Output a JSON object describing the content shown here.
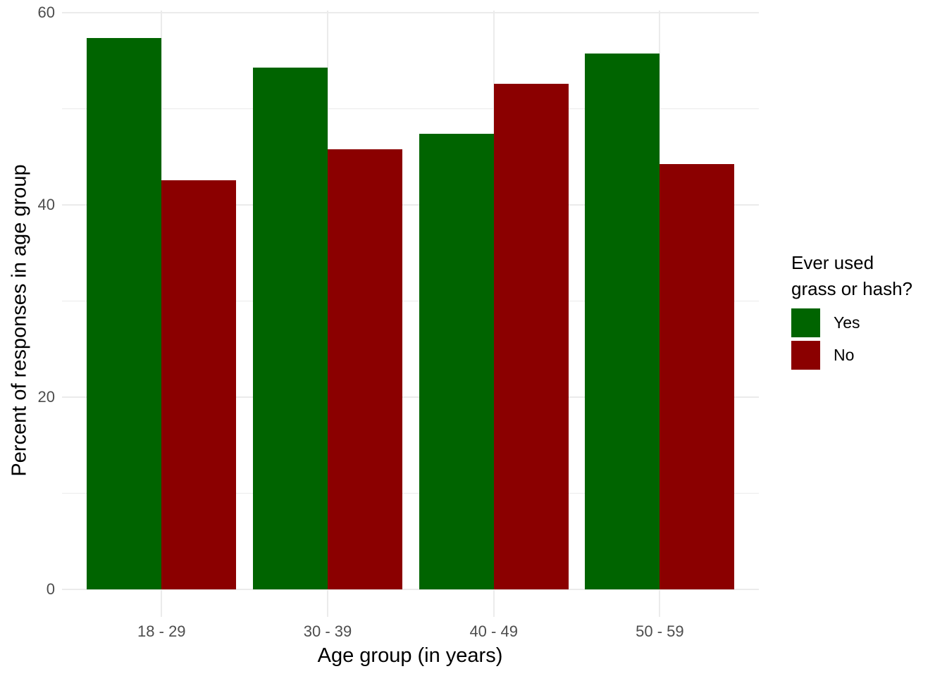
{
  "chart_data": {
    "type": "bar",
    "title": "",
    "categories": [
      "18 - 29",
      "30 - 39",
      "40 - 49",
      "50 - 59"
    ],
    "series": [
      {
        "name": "Yes",
        "color": "#006400",
        "values": [
          57.4,
          54.3,
          47.4,
          55.8
        ]
      },
      {
        "name": "No",
        "color": "#8B0000",
        "values": [
          42.6,
          45.8,
          52.6,
          44.3
        ]
      }
    ],
    "xlabel": "Age group (in years)",
    "ylabel": "Percent of responses in age group",
    "ylim": [
      0,
      60
    ],
    "yticks": [
      0,
      20,
      40,
      60
    ],
    "ytick_labels": [
      "0",
      "20",
      "40",
      "60"
    ],
    "yminor": [
      10,
      30,
      50
    ],
    "grid": "major and minor horizontal lines, vertical major lines at category centers, grey on white",
    "legend": {
      "position": "right",
      "title_lines": [
        "Ever used",
        "grass or hash?"
      ],
      "entries": [
        {
          "label": "Yes",
          "color": "#006400"
        },
        {
          "label": "No",
          "color": "#8B0000"
        }
      ]
    },
    "colors": {
      "background": "#FFFFFF",
      "gridline": "#EBEBEB",
      "tick_label_text": "#4D4D4D",
      "axis_title_text": "#000000"
    }
  }
}
